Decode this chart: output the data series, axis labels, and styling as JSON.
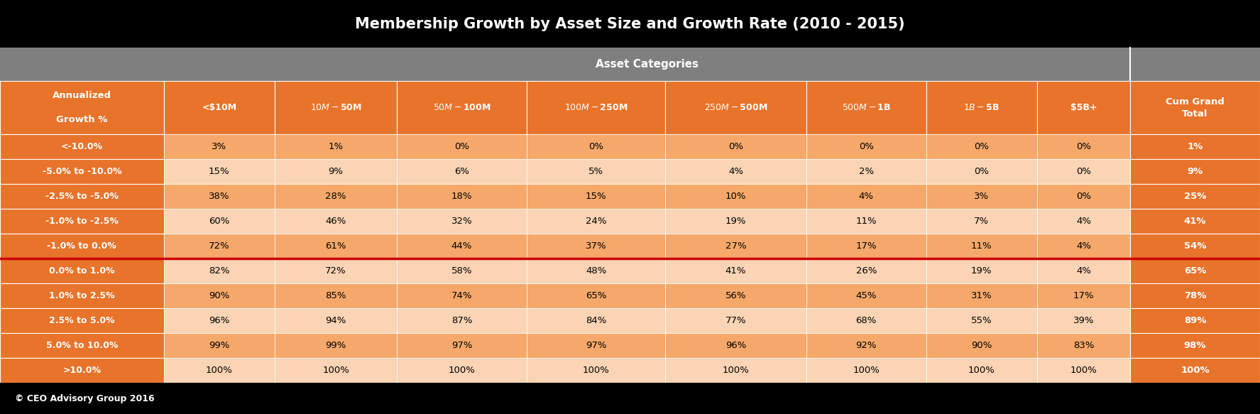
{
  "title": "Membership Growth by Asset Size and Growth Rate (2010 - 2015)",
  "title_bg": "#000000",
  "title_color": "#ffffff",
  "subtitle": "Asset Categories",
  "subtitle_bg": "#7F7F7F",
  "subtitle_color": "#ffffff",
  "col_header_bg": "#E8732A",
  "col_header_color": "#ffffff",
  "row_label_bg": "#E8732A",
  "row_label_color": "#ffffff",
  "last_col_bg": "#E8732A",
  "last_col_color": "#ffffff",
  "footer_text": "© CEO Advisory Group 2016",
  "footer_bg": "#000000",
  "footer_color": "#ffffff",
  "columns": [
    "Annualized\n\nGrowth %",
    "<$10M",
    "$10M-$50M",
    "$50M-$100M",
    "$100M-$250M",
    "$250M-$500M",
    "$500M-$1B",
    "$1B-$5B",
    "$5B+",
    "Cum Grand\nTotal"
  ],
  "rows": [
    {
      "label": "<-10.0%",
      "values": [
        "3%",
        "1%",
        "0%",
        "0%",
        "0%",
        "0%",
        "0%",
        "0%",
        "1%"
      ],
      "odd": true
    },
    {
      "label": "-5.0% to -10.0%",
      "values": [
        "15%",
        "9%",
        "6%",
        "5%",
        "4%",
        "2%",
        "0%",
        "0%",
        "9%"
      ],
      "odd": false
    },
    {
      "label": "-2.5% to -5.0%",
      "values": [
        "38%",
        "28%",
        "18%",
        "15%",
        "10%",
        "4%",
        "3%",
        "0%",
        "25%"
      ],
      "odd": true
    },
    {
      "label": "-1.0% to -2.5%",
      "values": [
        "60%",
        "46%",
        "32%",
        "24%",
        "19%",
        "11%",
        "7%",
        "4%",
        "41%"
      ],
      "odd": false
    },
    {
      "label": "-1.0% to 0.0%",
      "values": [
        "72%",
        "61%",
        "44%",
        "37%",
        "27%",
        "17%",
        "11%",
        "4%",
        "54%"
      ],
      "odd": true,
      "red_border": true
    },
    {
      "label": "0.0% to 1.0%",
      "values": [
        "82%",
        "72%",
        "58%",
        "48%",
        "41%",
        "26%",
        "19%",
        "4%",
        "65%"
      ],
      "odd": false
    },
    {
      "label": "1.0% to 2.5%",
      "values": [
        "90%",
        "85%",
        "74%",
        "65%",
        "56%",
        "45%",
        "31%",
        "17%",
        "78%"
      ],
      "odd": true
    },
    {
      "label": "2.5% to 5.0%",
      "values": [
        "96%",
        "94%",
        "87%",
        "84%",
        "77%",
        "68%",
        "55%",
        "39%",
        "89%"
      ],
      "odd": false
    },
    {
      "label": "5.0% to 10.0%",
      "values": [
        "99%",
        "99%",
        "97%",
        "97%",
        "96%",
        "92%",
        "90%",
        "83%",
        "98%"
      ],
      "odd": true
    },
    {
      "label": ">10.0%",
      "values": [
        "100%",
        "100%",
        "100%",
        "100%",
        "100%",
        "100%",
        "100%",
        "100%",
        "100%"
      ],
      "odd": false
    }
  ],
  "cell_odd_bg": "#F5A86A",
  "cell_even_bg": "#FAD4B4",
  "cell_text_color": "#000000",
  "red_line_color": "#CC0000",
  "figsize": [
    17.75,
    5.83
  ],
  "dpi": 100
}
